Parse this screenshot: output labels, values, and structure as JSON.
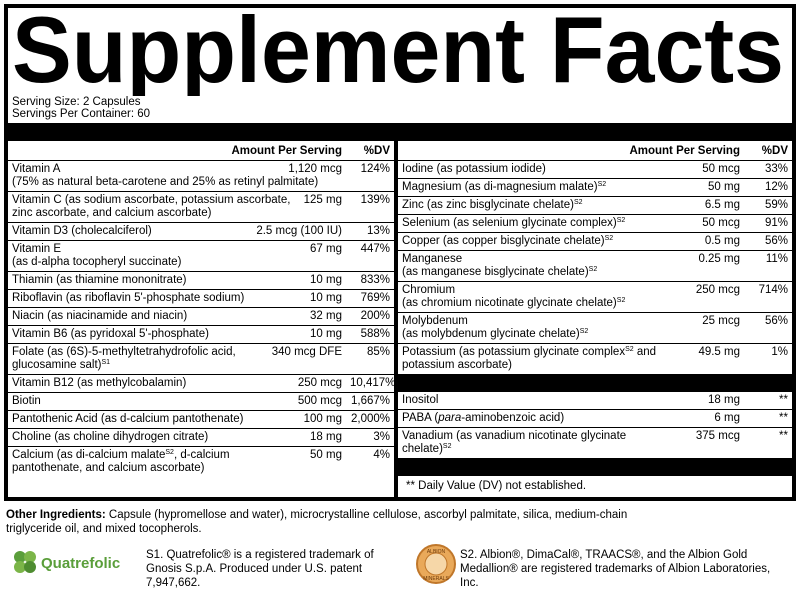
{
  "title": "Supplement Facts",
  "serving_size": "Serving Size: 2 Capsules",
  "servings_per_container": "Servings Per Container: 60",
  "left_table": {
    "headers": [
      "Amount Per Serving",
      "%DV"
    ],
    "rows": [
      {
        "name": [
          "Vitamin A"
        ],
        "amount": "1,120 mcg",
        "dv": "124%",
        "detail": [
          "(75% as natural beta-carotene and 25% as retinyl palmitate)"
        ]
      },
      {
        "name": [
          "Vitamin C (as sodium ascorbate, potassium ascorbate, zinc ascorbate, and calcium ascorbate)"
        ],
        "amount": "125 mg",
        "dv": "139%"
      },
      {
        "name": [
          "Vitamin D3 (cholecalciferol)"
        ],
        "amount": "2.5 mcg (100 IU)",
        "dv": "13%"
      },
      {
        "name": [
          "Vitamin E"
        ],
        "amount": "67 mg",
        "dv": "447%",
        "detail": [
          "(as d-alpha tocopheryl succinate)"
        ]
      },
      {
        "name": [
          "Thiamin (as thiamine mononitrate)"
        ],
        "amount": "10 mg",
        "dv": "833%"
      },
      {
        "name": [
          "Riboflavin (as riboflavin 5'-phosphate sodium)"
        ],
        "amount": "10 mg",
        "dv": "769%"
      },
      {
        "name": [
          "Niacin (as niacinamide and niacin)"
        ],
        "amount": "32 mg",
        "dv": "200%"
      },
      {
        "name": [
          "Vitamin B6 (as pyridoxal 5'-phosphate)"
        ],
        "amount": "10 mg",
        "dv": "588%"
      },
      {
        "name": [
          "Folate (as (6S)-5-methyltetrahydrofolic acid, glucosamine salt)",
          {
            "sup": "S1"
          }
        ],
        "amount": "340 mcg DFE",
        "dv": "85%"
      },
      {
        "name": [
          "Vitamin B12 (as methylcobalamin)"
        ],
        "amount": "250 mcg",
        "dv": "10,417%"
      },
      {
        "name": [
          "Biotin"
        ],
        "amount": "500 mcg",
        "dv": "1,667%"
      },
      {
        "name": [
          "Pantothenic Acid (as d-calcium pantothenate)"
        ],
        "amount": "100 mg",
        "dv": "2,000%"
      },
      {
        "name": [
          "Choline (as choline dihydrogen citrate)"
        ],
        "amount": "18 mg",
        "dv": "3%"
      },
      {
        "name": [
          "Calcium (as di-calcium malate",
          {
            "sup": "S2"
          },
          ", d-calcium pantothenate, and calcium ascorbate)"
        ],
        "amount": "50 mg",
        "dv": "4%"
      }
    ]
  },
  "right_table": {
    "headers": [
      "Amount Per Serving",
      "%DV"
    ],
    "rows": [
      {
        "name": [
          "Iodine (as potassium iodide)"
        ],
        "amount": "50 mcg",
        "dv": "33%"
      },
      {
        "name": [
          "Magnesium (as di-magnesium malate)",
          {
            "sup": "S2"
          }
        ],
        "amount": "50 mg",
        "dv": "12%"
      },
      {
        "name": [
          "Zinc (as zinc bisglycinate chelate)",
          {
            "sup": "S2"
          }
        ],
        "amount": "6.5 mg",
        "dv": "59%"
      },
      {
        "name": [
          "Selenium (as selenium glycinate complex)",
          {
            "sup": "S2"
          }
        ],
        "amount": "50 mcg",
        "dv": "91%"
      },
      {
        "name": [
          "Copper (as copper bisglycinate chelate)",
          {
            "sup": "S2"
          }
        ],
        "amount": "0.5 mg",
        "dv": "56%"
      },
      {
        "name": [
          "Manganese"
        ],
        "amount": "0.25 mg",
        "dv": "11%",
        "detail": [
          "(as manganese bisglycinate chelate)",
          {
            "sup": "S2"
          }
        ]
      },
      {
        "name": [
          "Chromium"
        ],
        "amount": "250 mcg",
        "dv": "714%",
        "detail": [
          "(as chromium nicotinate glycinate chelate)",
          {
            "sup": "S2"
          }
        ]
      },
      {
        "name": [
          "Molybdenum"
        ],
        "amount": "25 mcg",
        "dv": "56%",
        "detail": [
          "(as molybdenum glycinate chelate)",
          {
            "sup": "S2"
          }
        ]
      },
      {
        "name": [
          "Potassium (as potassium glycinate complex",
          {
            "sup": "S2"
          },
          " and potassium ascorbate)"
        ],
        "amount": "49.5 mg",
        "dv": "1%"
      }
    ],
    "extra_rows": [
      {
        "name": [
          "Inositol"
        ],
        "amount": "18 mg",
        "dv": "**"
      },
      {
        "name": [
          "PABA (",
          {
            "em": "para"
          },
          "-aminobenzoic acid)"
        ],
        "amount": "6 mg",
        "dv": "**"
      },
      {
        "name": [
          "Vanadium (as vanadium nicotinate glycinate chelate)",
          {
            "sup": "S2"
          }
        ],
        "amount": "375 mcg",
        "dv": "**"
      }
    ],
    "note": "** Daily Value (DV) not established."
  },
  "other_ingredients": {
    "label": "Other Ingredients:",
    "text": "Capsule (hypromellose and water), microcrystalline cellulose, ascorbyl palmitate, silica, medium-chain triglyceride oil, and mixed tocopherols."
  },
  "footnotes": [
    {
      "logo": "Quatrefolic",
      "text": "S1. Quatrefolic® is a registered trademark of Gnosis S.p.A. Produced under U.S. patent 7,947,662."
    },
    {
      "logo": [
        "ALBION",
        "MINERALS"
      ],
      "text": "S2. Albion®, DimaCal®, TRAACS®, and the Albion Gold Medallion® are registered trademarks of Albion Laboratories, Inc."
    }
  ]
}
